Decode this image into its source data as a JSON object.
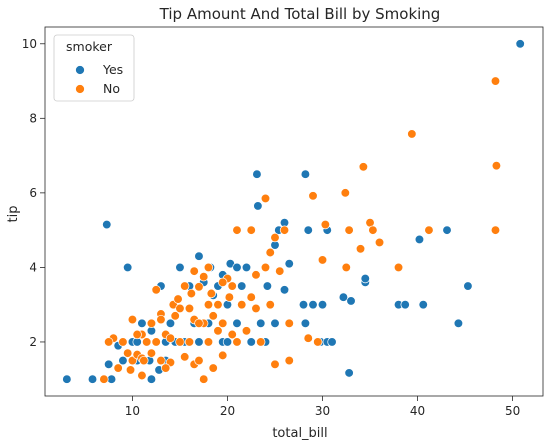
{
  "chart_data": {
    "type": "scatter",
    "title": "Tip Amount And Total Bill by Smoking",
    "xlabel": "total_bill",
    "ylabel": "tip",
    "xlim": [
      0.8,
      53.2
    ],
    "ylim": [
      0.55,
      10.45
    ],
    "x_ticks": [
      10,
      20,
      30,
      40,
      50
    ],
    "y_ticks": [
      2,
      4,
      6,
      8,
      10
    ],
    "grid": false,
    "legend": {
      "title": "smoker",
      "placement": "top-left",
      "entries": [
        {
          "label": "Yes",
          "color": "#1f77b4"
        },
        {
          "label": "No",
          "color": "#ff7f0e"
        }
      ]
    },
    "series": [
      {
        "name": "Yes",
        "color": "#1f77b4",
        "points": [
          [
            50.8,
            10.0
          ],
          [
            48.2,
            9.0
          ],
          [
            23.1,
            6.5
          ],
          [
            28.2,
            6.5
          ],
          [
            23.2,
            5.65
          ],
          [
            26.0,
            5.2
          ],
          [
            25.4,
            5.0
          ],
          [
            28.5,
            5.0
          ],
          [
            30.5,
            5.0
          ],
          [
            43.1,
            5.0
          ],
          [
            7.3,
            5.15
          ],
          [
            40.2,
            4.75
          ],
          [
            25.0,
            4.6
          ],
          [
            9.5,
            4.0
          ],
          [
            15.0,
            4.0
          ],
          [
            17.0,
            4.3
          ],
          [
            18.2,
            4.0
          ],
          [
            19.5,
            3.8
          ],
          [
            20.3,
            4.1
          ],
          [
            21.0,
            4.0
          ],
          [
            22.0,
            4.0
          ],
          [
            24.0,
            4.0
          ],
          [
            26.5,
            4.1
          ],
          [
            34.5,
            3.6
          ],
          [
            34.5,
            3.7
          ],
          [
            45.3,
            3.5
          ],
          [
            13.0,
            3.5
          ],
          [
            16.0,
            3.5
          ],
          [
            17.5,
            3.6
          ],
          [
            18.5,
            3.25
          ],
          [
            19.0,
            3.5
          ],
          [
            20.0,
            3.0
          ],
          [
            21.5,
            3.5
          ],
          [
            24.2,
            3.5
          ],
          [
            26.0,
            3.4
          ],
          [
            28.0,
            3.0
          ],
          [
            29.0,
            3.0
          ],
          [
            30.0,
            3.0
          ],
          [
            32.2,
            3.2
          ],
          [
            33.0,
            3.1
          ],
          [
            38.0,
            3.0
          ],
          [
            38.7,
            3.0
          ],
          [
            40.6,
            3.0
          ],
          [
            44.3,
            2.5
          ],
          [
            11.0,
            2.5
          ],
          [
            12.0,
            2.3
          ],
          [
            13.5,
            2.0
          ],
          [
            14.0,
            2.5
          ],
          [
            15.5,
            2.0
          ],
          [
            16.5,
            2.5
          ],
          [
            18.0,
            2.5
          ],
          [
            19.5,
            2.0
          ],
          [
            21.0,
            2.5
          ],
          [
            22.5,
            2.0
          ],
          [
            23.5,
            2.5
          ],
          [
            25.0,
            2.5
          ],
          [
            28.2,
            2.5
          ],
          [
            29.8,
            2.0
          ],
          [
            30.5,
            2.0
          ],
          [
            31.0,
            2.0
          ],
          [
            10.0,
            2.0
          ],
          [
            10.5,
            2.0
          ],
          [
            11.5,
            2.0
          ],
          [
            12.5,
            2.0
          ],
          [
            8.5,
            1.9
          ],
          [
            14.5,
            2.0
          ],
          [
            17.0,
            2.0
          ],
          [
            20.0,
            2.0
          ],
          [
            24.0,
            2.0
          ],
          [
            11.8,
            1.5
          ],
          [
            12.8,
            1.25
          ],
          [
            13.5,
            1.5
          ],
          [
            9.0,
            1.5
          ],
          [
            7.5,
            1.4
          ],
          [
            10.5,
            1.5
          ],
          [
            12.0,
            1.0
          ],
          [
            3.1,
            1.0
          ],
          [
            5.8,
            1.0
          ],
          [
            7.8,
            1.0
          ],
          [
            32.8,
            1.17
          ]
        ]
      },
      {
        "name": "No",
        "color": "#ff7f0e",
        "points": [
          [
            48.2,
            9.0
          ],
          [
            39.4,
            7.58
          ],
          [
            48.3,
            6.73
          ],
          [
            34.3,
            6.7
          ],
          [
            32.4,
            6.0
          ],
          [
            29.0,
            5.92
          ],
          [
            24.0,
            5.85
          ],
          [
            35.0,
            5.2
          ],
          [
            35.3,
            5.0
          ],
          [
            41.2,
            5.0
          ],
          [
            48.2,
            5.0
          ],
          [
            32.8,
            5.0
          ],
          [
            30.3,
            5.15
          ],
          [
            26.0,
            5.0
          ],
          [
            21.0,
            5.0
          ],
          [
            22.5,
            5.0
          ],
          [
            25.0,
            4.8
          ],
          [
            36.0,
            4.67
          ],
          [
            34.0,
            4.5
          ],
          [
            24.5,
            4.4
          ],
          [
            30.0,
            4.2
          ],
          [
            38.0,
            4.0
          ],
          [
            24.0,
            4.0
          ],
          [
            25.5,
            3.9
          ],
          [
            23.0,
            3.8
          ],
          [
            20.5,
            3.5
          ],
          [
            20.0,
            3.7
          ],
          [
            18.0,
            4.0
          ],
          [
            16.5,
            3.9
          ],
          [
            17.5,
            3.75
          ],
          [
            19.5,
            3.6
          ],
          [
            17.0,
            3.48
          ],
          [
            18.3,
            3.3
          ],
          [
            15.5,
            3.5
          ],
          [
            16.2,
            3.3
          ],
          [
            14.3,
            3.0
          ],
          [
            14.8,
            3.15
          ],
          [
            15.0,
            2.9
          ],
          [
            12.5,
            3.4
          ],
          [
            13.0,
            2.75
          ],
          [
            14.5,
            2.7
          ],
          [
            16.0,
            2.9
          ],
          [
            18.0,
            3.0
          ],
          [
            19.0,
            3.0
          ],
          [
            20.2,
            3.2
          ],
          [
            21.5,
            3.0
          ],
          [
            22.5,
            3.2
          ],
          [
            23.0,
            2.9
          ],
          [
            16.5,
            2.6
          ],
          [
            17.5,
            2.5
          ],
          [
            18.5,
            2.7
          ],
          [
            19.5,
            2.5
          ],
          [
            20.5,
            2.2
          ],
          [
            21.0,
            2.0
          ],
          [
            22.0,
            2.3
          ],
          [
            23.5,
            2.0
          ],
          [
            24.5,
            3.0
          ],
          [
            26.5,
            2.5
          ],
          [
            13.0,
            2.6
          ],
          [
            12.0,
            2.5
          ],
          [
            11.0,
            2.2
          ],
          [
            13.5,
            2.2
          ],
          [
            14.0,
            2.1
          ],
          [
            15.0,
            2.0
          ],
          [
            16.0,
            2.0
          ],
          [
            17.0,
            2.5
          ],
          [
            18.0,
            2.0
          ],
          [
            19.0,
            2.3
          ],
          [
            10.0,
            2.6
          ],
          [
            10.5,
            2.2
          ],
          [
            11.5,
            2.0
          ],
          [
            12.5,
            2.0
          ],
          [
            9.5,
            1.7
          ],
          [
            9.0,
            2.0
          ],
          [
            8.0,
            2.1
          ],
          [
            7.5,
            2.0
          ],
          [
            10.0,
            1.5
          ],
          [
            10.5,
            1.66
          ],
          [
            11.0,
            1.56
          ],
          [
            12.0,
            1.7
          ],
          [
            13.0,
            1.5
          ],
          [
            14.0,
            1.45
          ],
          [
            15.5,
            1.6
          ],
          [
            16.5,
            1.4
          ],
          [
            17.0,
            1.5
          ],
          [
            18.5,
            1.3
          ],
          [
            19.5,
            1.64
          ],
          [
            7.0,
            1.0
          ],
          [
            8.5,
            1.3
          ],
          [
            9.8,
            1.25
          ],
          [
            11.0,
            1.1
          ],
          [
            11.2,
            1.5
          ],
          [
            13.5,
            1.3
          ],
          [
            17.5,
            1.0
          ],
          [
            26.5,
            1.5
          ],
          [
            28.5,
            2.1
          ],
          [
            29.5,
            2.0
          ],
          [
            32.5,
            4.0
          ],
          [
            25.0,
            1.4
          ]
        ]
      }
    ]
  }
}
